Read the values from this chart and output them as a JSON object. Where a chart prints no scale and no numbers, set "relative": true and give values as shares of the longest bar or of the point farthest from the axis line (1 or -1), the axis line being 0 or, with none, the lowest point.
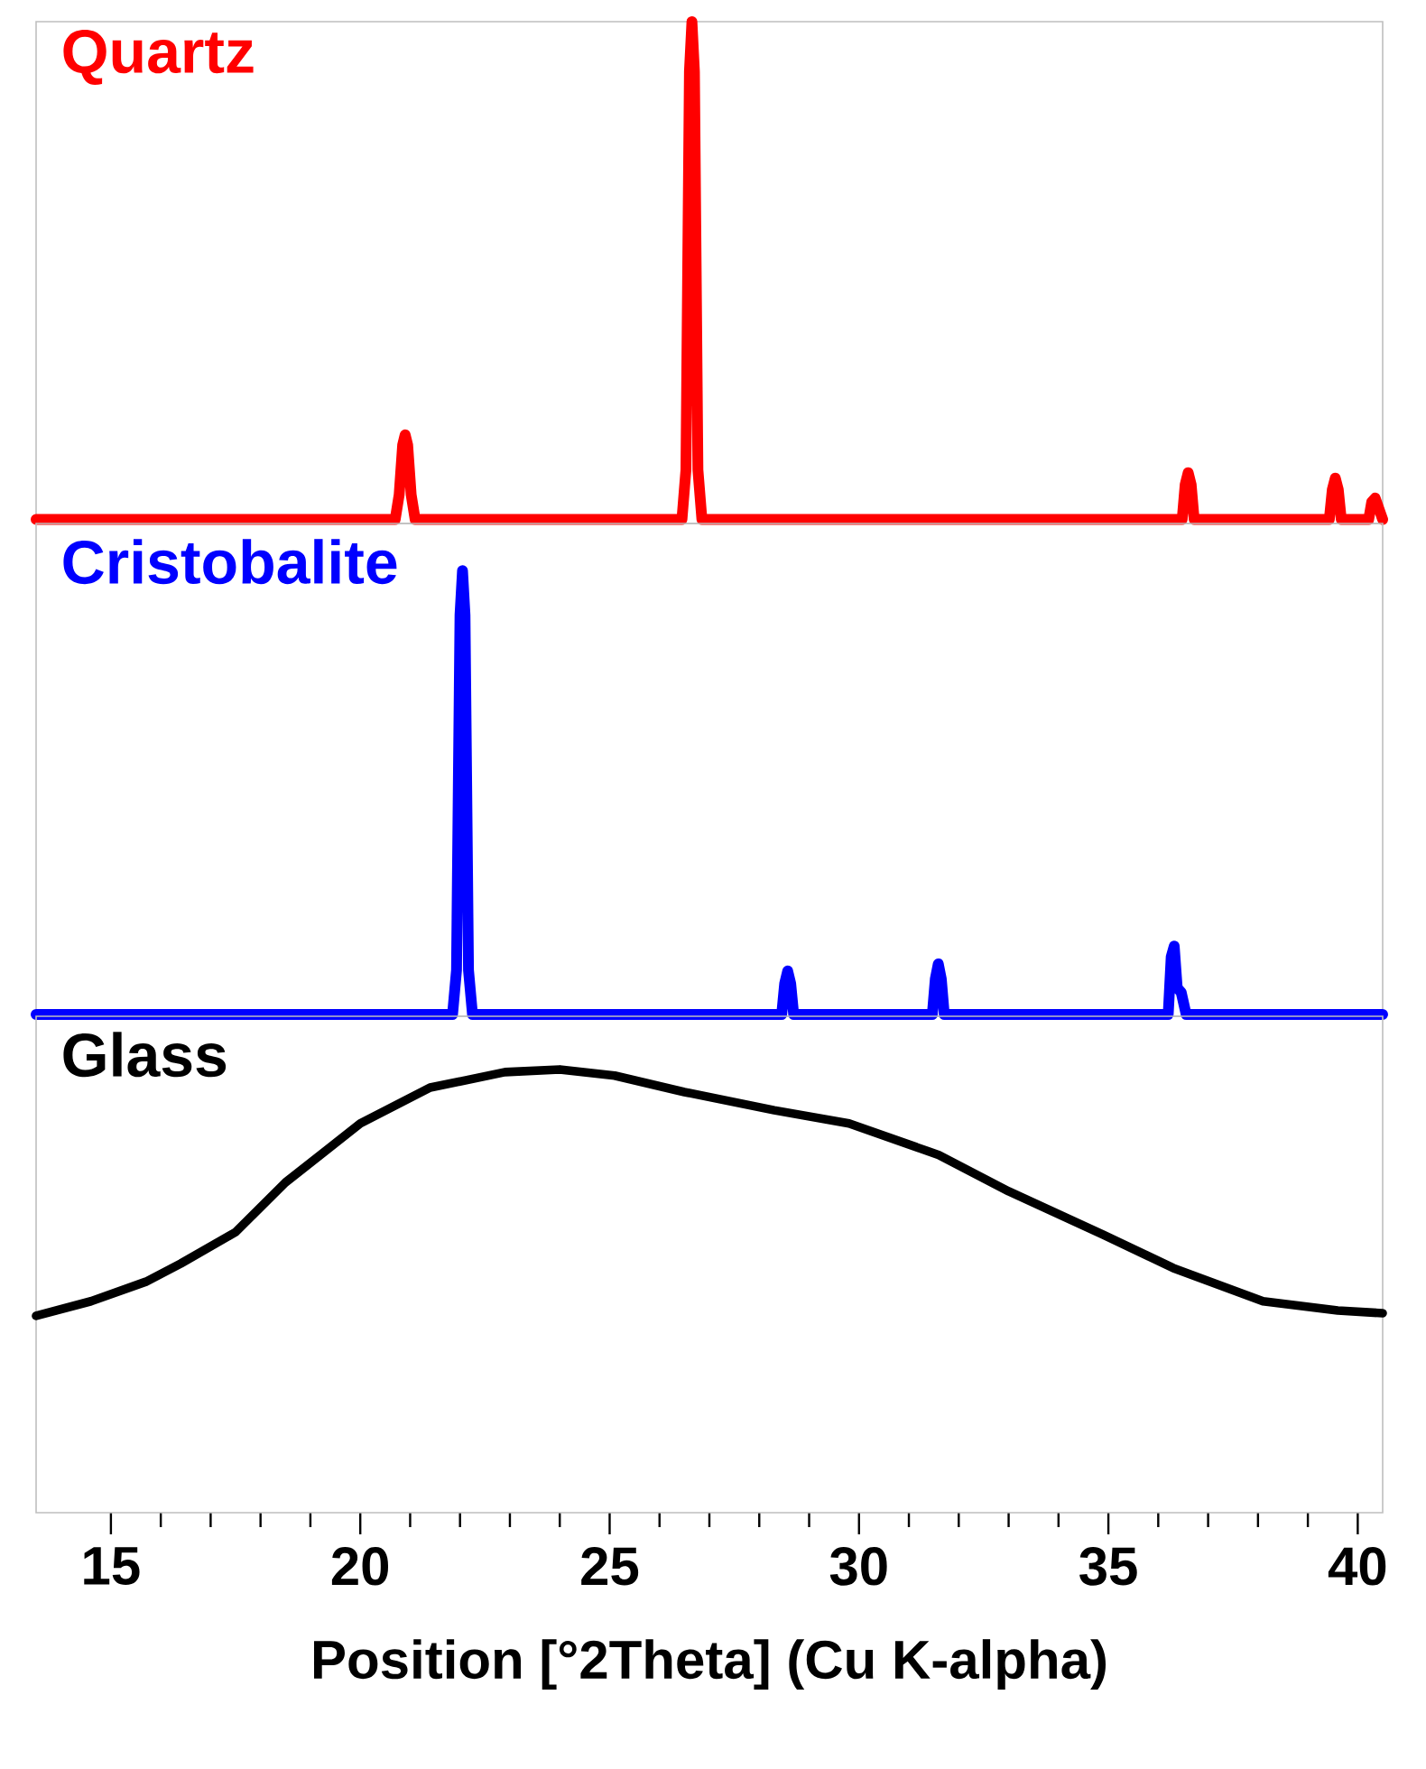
{
  "chart_data": [
    {
      "type": "line",
      "title": "Quartz",
      "relative": true,
      "xlim": [
        13.5,
        40.5
      ],
      "tick_labels": false,
      "x": [
        13.5,
        20.7,
        20.78,
        20.85,
        20.9,
        20.95,
        21.02,
        21.1,
        26.45,
        26.53,
        26.6,
        26.65,
        26.7,
        26.77,
        26.85,
        36.48,
        36.54,
        36.6,
        36.66,
        36.72,
        39.43,
        39.49,
        39.55,
        39.61,
        39.67,
        40.22,
        40.28,
        40.35,
        40.5
      ],
      "series": [
        {
          "color": "#ff0000",
          "values": [
            0,
            0,
            0.05,
            0.15,
            0.17,
            0.15,
            0.05,
            0,
            0,
            0.1,
            0.9,
            1,
            0.9,
            0.1,
            0,
            0,
            0.07,
            0.094,
            0.07,
            0,
            0,
            0.06,
            0.083,
            0.06,
            0,
            0,
            0.035,
            0.043,
            0
          ]
        }
      ]
    },
    {
      "type": "line",
      "title": "Cristobalite",
      "relative": true,
      "xlim": [
        13.5,
        40.5
      ],
      "tick_labels": false,
      "x": [
        13.5,
        21.85,
        21.93,
        22.0,
        22.05,
        22.1,
        22.17,
        22.25,
        28.45,
        28.51,
        28.57,
        28.63,
        28.69,
        31.47,
        31.53,
        31.59,
        31.65,
        31.71,
        36.2,
        36.26,
        36.32,
        36.38,
        36.46,
        36.56,
        40.5
      ],
      "series": [
        {
          "color": "#0000ff",
          "values": [
            0,
            0,
            0.1,
            0.9,
            1,
            0.9,
            0.1,
            0,
            0,
            0.07,
            0.098,
            0.07,
            0,
            0,
            0.08,
            0.114,
            0.08,
            0,
            0,
            0.13,
            0.154,
            0.06,
            0.05,
            0,
            0
          ]
        }
      ]
    },
    {
      "type": "line",
      "title": "Glass",
      "relative": true,
      "xlim": [
        13.5,
        40.5
      ],
      "tick_labels": "x",
      "xlabel": "Position [°2Theta] (Cu K-alpha)",
      "xticks": [
        15,
        20,
        25,
        30,
        35,
        40
      ],
      "x": [
        13.5,
        14.6,
        15.7,
        16.4,
        17.5,
        18.5,
        20.0,
        21.4,
        22.9,
        24.0,
        25.1,
        26.5,
        28.3,
        29.8,
        31.6,
        33.0,
        34.9,
        36.3,
        38.1,
        39.6,
        40.5
      ],
      "series": [
        {
          "color": "#000000",
          "values": [
            0.444,
            0.477,
            0.521,
            0.562,
            0.633,
            0.745,
            0.878,
            0.959,
            0.994,
            1,
            0.986,
            0.949,
            0.908,
            0.878,
            0.807,
            0.725,
            0.627,
            0.552,
            0.477,
            0.456,
            0.45
          ]
        }
      ]
    }
  ]
}
